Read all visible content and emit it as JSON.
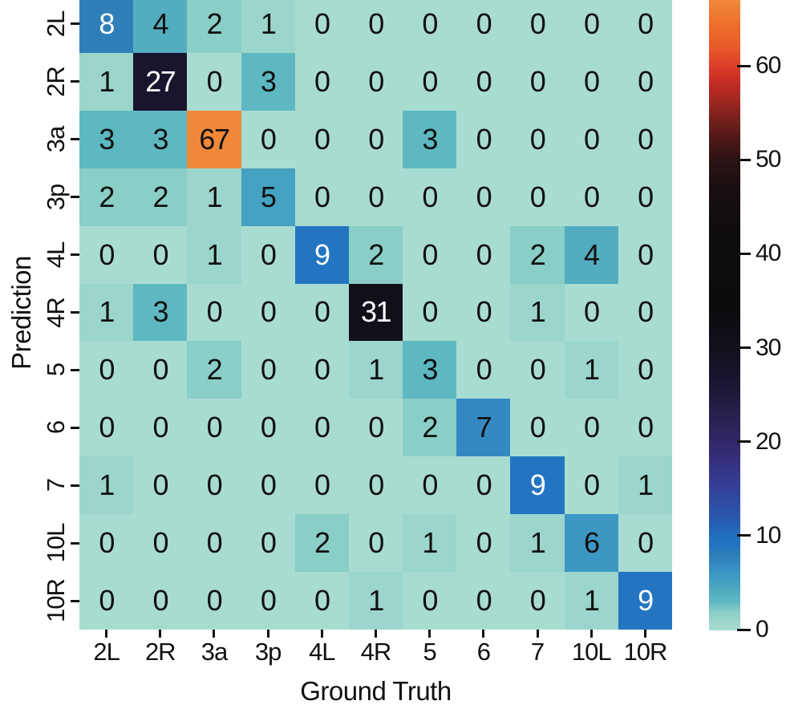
{
  "figure": {
    "background": "#ffffff",
    "text_color": "#111111",
    "tick_color": "#111111"
  },
  "chart_data": {
    "type": "heatmap",
    "title": "",
    "xlabel": "Ground Truth",
    "ylabel": "Prediction",
    "x_categories": [
      "2L",
      "2R",
      "3a",
      "3p",
      "4L",
      "4R",
      "5",
      "6",
      "7",
      "10L",
      "10R"
    ],
    "y_categories": [
      "2L",
      "2R",
      "3a",
      "3p",
      "4L",
      "4R",
      "5",
      "6",
      "7",
      "10L",
      "10R"
    ],
    "matrix": [
      [
        8,
        4,
        2,
        1,
        0,
        0,
        0,
        0,
        0,
        0,
        0
      ],
      [
        1,
        27,
        0,
        3,
        0,
        0,
        0,
        0,
        0,
        0,
        0
      ],
      [
        3,
        3,
        67,
        0,
        0,
        0,
        3,
        0,
        0,
        0,
        0
      ],
      [
        2,
        2,
        1,
        5,
        0,
        0,
        0,
        0,
        0,
        0,
        0
      ],
      [
        0,
        0,
        1,
        0,
        9,
        2,
        0,
        0,
        2,
        4,
        0
      ],
      [
        1,
        3,
        0,
        0,
        0,
        31,
        0,
        0,
        1,
        0,
        0
      ],
      [
        0,
        0,
        2,
        0,
        0,
        1,
        3,
        0,
        0,
        1,
        0
      ],
      [
        0,
        0,
        0,
        0,
        0,
        0,
        2,
        7,
        0,
        0,
        0
      ],
      [
        1,
        0,
        0,
        0,
        0,
        0,
        0,
        0,
        9,
        0,
        1
      ],
      [
        0,
        0,
        0,
        0,
        2,
        0,
        1,
        0,
        1,
        6,
        0
      ],
      [
        0,
        0,
        0,
        0,
        0,
        1,
        0,
        0,
        0,
        1,
        9
      ]
    ],
    "vmin": 0,
    "vmax": 67,
    "colorbar_ticks": [
      0,
      10,
      20,
      30,
      40,
      50,
      60
    ],
    "colormap_name": "icefire",
    "colormap_stops": [
      [
        0,
        "#a9dcd1"
      ],
      [
        1,
        "#9bd5cb"
      ],
      [
        2,
        "#89cec7"
      ],
      [
        3,
        "#5eb8c2"
      ],
      [
        4,
        "#53adc0"
      ],
      [
        5,
        "#45a2c1"
      ],
      [
        6,
        "#3d97c3"
      ],
      [
        7,
        "#3489c3"
      ],
      [
        8,
        "#2e7fb8"
      ],
      [
        9,
        "#2375c1"
      ],
      [
        10,
        "#1f6fbd"
      ],
      [
        12,
        "#2b58ac"
      ],
      [
        15,
        "#34419a"
      ],
      [
        18,
        "#372f7f"
      ],
      [
        20,
        "#322868"
      ],
      [
        23,
        "#281f4d"
      ],
      [
        26,
        "#1c1634"
      ],
      [
        30,
        "#12101b"
      ],
      [
        34,
        "#0d0b0d"
      ],
      [
        42,
        "#0e0c0d"
      ],
      [
        47,
        "#180f11"
      ],
      [
        50,
        "#2d1314"
      ],
      [
        52,
        "#4a1717"
      ],
      [
        54,
        "#6f1f1b"
      ],
      [
        56,
        "#9a2620"
      ],
      [
        58,
        "#c02a24"
      ],
      [
        60,
        "#dd3f28"
      ],
      [
        62,
        "#e75a29"
      ],
      [
        64,
        "#ec6c2a"
      ],
      [
        67,
        "#f0883a"
      ]
    ],
    "legend_position": "right",
    "grid": false
  }
}
